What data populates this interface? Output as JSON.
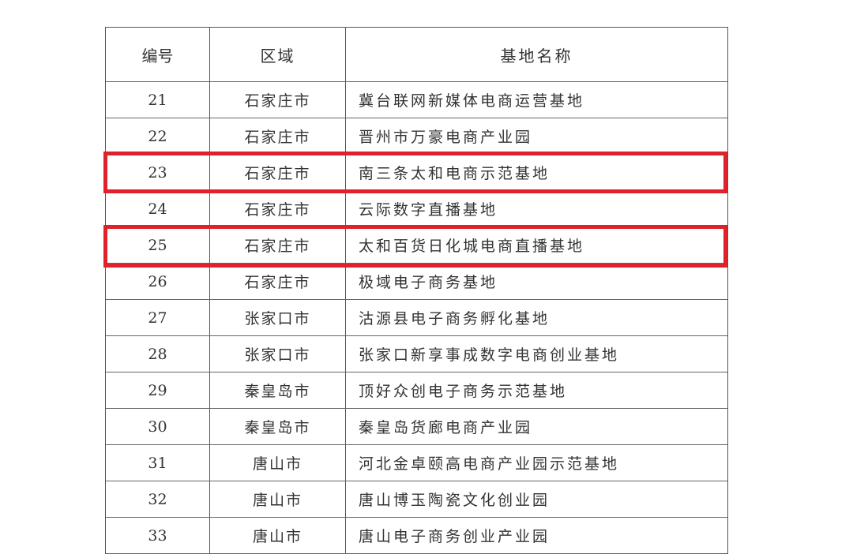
{
  "table": {
    "headers": [
      "编号",
      "区域",
      "基地名称"
    ],
    "rows": [
      {
        "no": "21",
        "region": "石家庄市",
        "name": "冀台联网新媒体电商运营基地"
      },
      {
        "no": "22",
        "region": "石家庄市",
        "name": "晋州市万豪电商产业园"
      },
      {
        "no": "23",
        "region": "石家庄市",
        "name": "南三条太和电商示范基地"
      },
      {
        "no": "24",
        "region": "石家庄市",
        "name": "云际数字直播基地"
      },
      {
        "no": "25",
        "region": "石家庄市",
        "name": "太和百货日化城电商直播基地"
      },
      {
        "no": "26",
        "region": "石家庄市",
        "name": "极域电子商务基地"
      },
      {
        "no": "27",
        "region": "张家口市",
        "name": "沽源县电子商务孵化基地"
      },
      {
        "no": "28",
        "region": "张家口市",
        "name": "张家口新享事成数字电商创业基地"
      },
      {
        "no": "29",
        "region": "秦皇岛市",
        "name": "顶好众创电子商务示范基地"
      },
      {
        "no": "30",
        "region": "秦皇岛市",
        "name": "秦皇岛货廊电商产业园"
      },
      {
        "no": "31",
        "region": "唐山市",
        "name": "河北金卓颐高电商产业园示范基地"
      },
      {
        "no": "32",
        "region": "唐山市",
        "name": "唐山博玉陶瓷文化创业园"
      },
      {
        "no": "33",
        "region": "唐山市",
        "name": "唐山电子商务创业产业园"
      }
    ]
  },
  "highlighted_rows": [
    "23",
    "25"
  ],
  "highlight_color": "#e0212b"
}
